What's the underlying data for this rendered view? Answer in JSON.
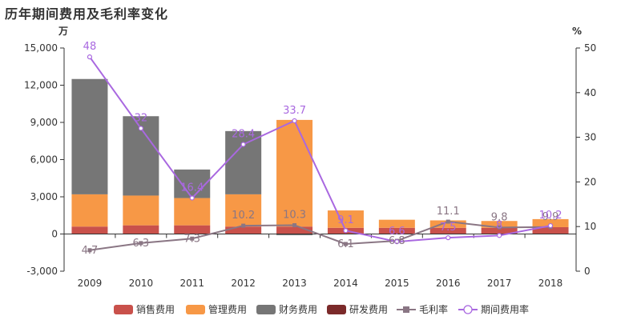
{
  "title": "历年期间费用及毛利率变化",
  "chart_data": {
    "type": "bar",
    "categories": [
      "2009",
      "2010",
      "2011",
      "2012",
      "2013",
      "2014",
      "2015",
      "2016",
      "2017",
      "2018"
    ],
    "left_unit": "万",
    "right_unit": "%",
    "ylim_left": [
      -3000,
      15000
    ],
    "yticks_left": [
      -3000,
      0,
      3000,
      6000,
      9000,
      12000,
      15000
    ],
    "ytick_labels_left": [
      "-3,000",
      "0",
      "3,000",
      "6,000",
      "9,000",
      "12,000",
      "15,000"
    ],
    "ylim_right": [
      0,
      50
    ],
    "yticks_right": [
      0,
      10,
      20,
      30,
      40,
      50
    ],
    "grid": false,
    "legend_position": "bottom",
    "series": [
      {
        "name": "销售费用",
        "kind": "bar",
        "color": "#c9514b",
        "values": [
          600,
          700,
          700,
          600,
          600,
          500,
          500,
          500,
          500,
          550
        ]
      },
      {
        "name": "管理费用",
        "kind": "bar",
        "color": "#f79846",
        "values": [
          2600,
          2400,
          2200,
          2600,
          8600,
          1400,
          650,
          600,
          550,
          650
        ]
      },
      {
        "name": "财务费用",
        "kind": "bar",
        "color": "#767676",
        "values": [
          9300,
          6400,
          2300,
          5100,
          -100,
          0,
          0,
          0,
          0,
          0
        ]
      },
      {
        "name": "研发费用",
        "kind": "bar",
        "color": "#7b2a2a",
        "values": [
          0,
          0,
          0,
          0,
          0,
          0,
          0,
          0,
          0,
          0
        ]
      },
      {
        "name": "毛利率",
        "kind": "line",
        "axis": "right",
        "color": "#8a7684",
        "values": [
          4.7,
          6.3,
          7.3,
          10.2,
          10.3,
          6.1,
          6.8,
          11.1,
          9.8,
          9.9
        ],
        "labels": [
          "4.7",
          "6.3",
          "7.3",
          "10.2",
          "10.3",
          "6.1",
          "6.8",
          "11.1",
          "9.8",
          "9.9"
        ]
      },
      {
        "name": "期间费用率",
        "kind": "line",
        "axis": "right",
        "color": "#a968e0",
        "values": [
          48,
          32,
          16.4,
          28.4,
          33.7,
          9.1,
          6.6,
          7.5,
          8,
          10.2
        ],
        "labels": [
          "48",
          "32",
          "16.4",
          "28.4",
          "33.7",
          "9.1",
          "6.6",
          "7.5",
          "8",
          "10.2"
        ]
      }
    ]
  }
}
